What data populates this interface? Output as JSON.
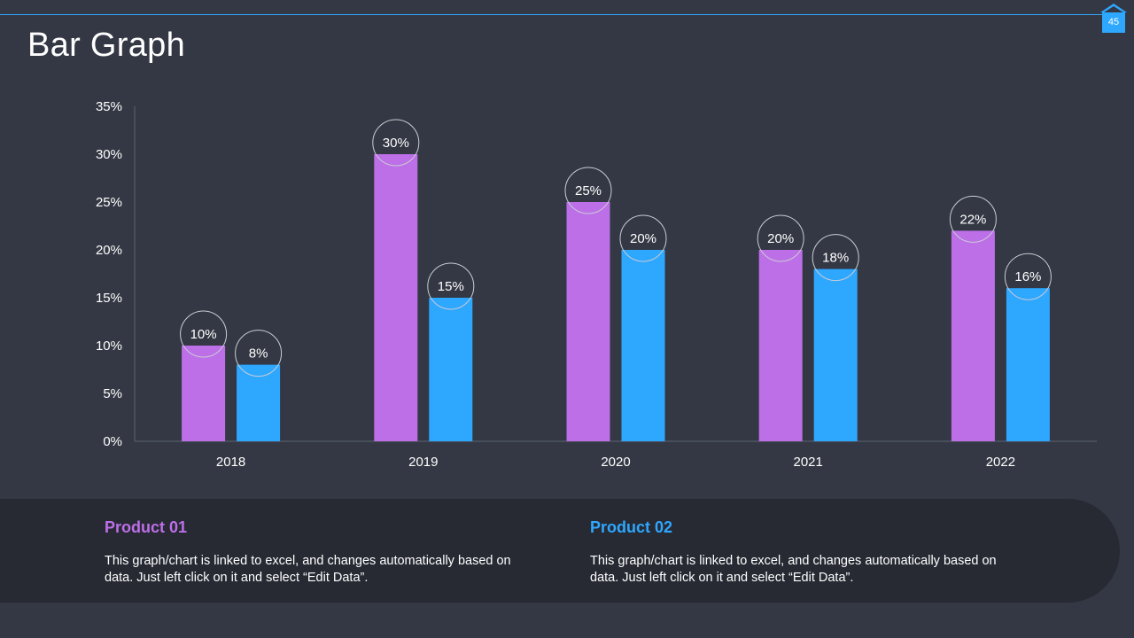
{
  "slide": {
    "title": "Bar Graph",
    "page_number": "45"
  },
  "colors": {
    "background": "#343844",
    "accent_line": "#2ea7ff",
    "product1": "#bd6fe8",
    "product2": "#2ea7ff",
    "footer": "#272a33"
  },
  "chart_data": {
    "type": "bar",
    "title": "",
    "xlabel": "",
    "ylabel": "",
    "categories": [
      "2018",
      "2019",
      "2020",
      "2021",
      "2022"
    ],
    "series": [
      {
        "name": "Product 01",
        "values": [
          10,
          30,
          25,
          20,
          22
        ],
        "color": "#bd6fe8"
      },
      {
        "name": "Product 02",
        "values": [
          8,
          15,
          20,
          18,
          16
        ],
        "color": "#2ea7ff"
      }
    ],
    "ylim": [
      0,
      35
    ],
    "yticks": [
      "0%",
      "5%",
      "10%",
      "15%",
      "20%",
      "25%",
      "30%",
      "35%"
    ],
    "data_labels": [
      [
        "10%",
        "30%",
        "25%",
        "20%",
        "22%"
      ],
      [
        "8%",
        "15%",
        "20%",
        "18%",
        "16%"
      ]
    ]
  },
  "footer": {
    "product1": {
      "title": "Product 01",
      "description": "This graph/chart is linked to excel, and changes automatically based on data. Just left click on it and select “Edit Data”."
    },
    "product2": {
      "title": "Product 02",
      "description": "This graph/chart is linked to excel, and changes automatically based on data. Just left click on it and select “Edit Data”."
    }
  }
}
